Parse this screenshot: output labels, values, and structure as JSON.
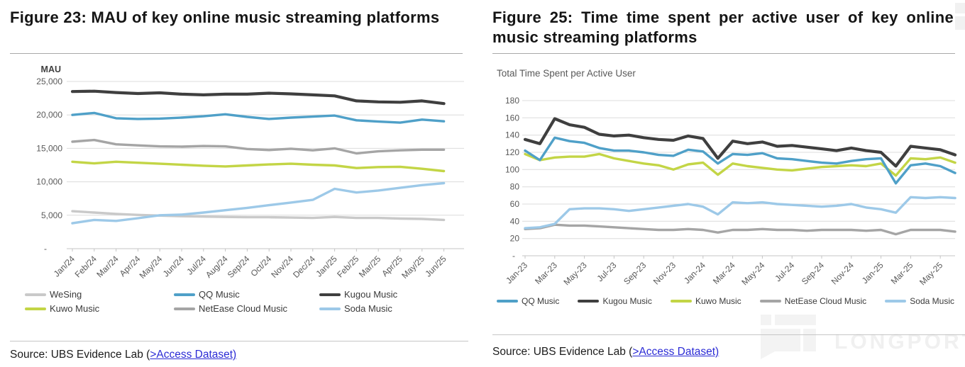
{
  "figure_left": {
    "title": "Figure 23: MAU of key online music streaming platforms",
    "source_prefix": "Source: UBS Evidence Lab (",
    "source_link": ">Access Dataset)"
  },
  "figure_right": {
    "title": "Figure 25: Time time spent per active user of key online music streaming platforms",
    "source_prefix": "Source: UBS Evidence Lab (",
    "source_link": ">Access Dataset)"
  },
  "watermark": {
    "text": "LONGPORT"
  },
  "colors": {
    "wesing": "#c9c9c9",
    "qq_music": "#4fa0c8",
    "kugou_music": "#3f3f3f",
    "kuwo_music": "#c3d546",
    "netease_cloud_music": "#a5a5a5",
    "soda_music": "#9dc9e8",
    "link_blue": "#2b2bd5"
  },
  "chart_data": [
    {
      "type": "line",
      "title": "MAU of key online music streaming platforms",
      "ylabel": "MAU",
      "xlabel": "",
      "ylim": [
        0,
        25000
      ],
      "grid": true,
      "legend_position": "bottom",
      "yticks": [
        25000,
        20000,
        15000,
        10000,
        5000,
        0
      ],
      "ytick_labels": [
        "25,000",
        "20,000",
        "15,000",
        "10,000",
        "5,000",
        "-"
      ],
      "categories": [
        "Jan/24",
        "Feb/24",
        "Mar/24",
        "Apr/24",
        "May/24",
        "Jun/24",
        "Jul/24",
        "Aug/24",
        "Sep/24",
        "Oct/24",
        "Nov/24",
        "Dec/24",
        "Jan/25",
        "Feb/25",
        "Mar/25",
        "Apr/25",
        "May/25",
        "Jun/25"
      ],
      "legend_order": [
        "WeSing",
        "QQ Music",
        "Kugou Music",
        "Kuwo Music",
        "NetEase Cloud Music",
        "Soda Music"
      ],
      "series": [
        {
          "name": "WeSing",
          "color": "#c9c9c9",
          "values": [
            5600,
            5400,
            5200,
            5050,
            4950,
            4850,
            4800,
            4750,
            4700,
            4700,
            4650,
            4600,
            4750,
            4600,
            4600,
            4500,
            4450,
            4300
          ]
        },
        {
          "name": "Soda Music",
          "color": "#9dc9e8",
          "values": [
            3800,
            4300,
            4150,
            4550,
            5000,
            5100,
            5400,
            5750,
            6100,
            6500,
            6900,
            7300,
            8950,
            8400,
            8700,
            9100,
            9500,
            9800
          ]
        },
        {
          "name": "Kuwo Music",
          "color": "#c3d546",
          "values": [
            13000,
            12750,
            13000,
            12850,
            12700,
            12550,
            12400,
            12300,
            12450,
            12600,
            12700,
            12550,
            12450,
            12050,
            12200,
            12250,
            11950,
            11600
          ]
        },
        {
          "name": "NetEase Cloud Music",
          "color": "#a5a5a5",
          "values": [
            16000,
            16250,
            15600,
            15450,
            15300,
            15250,
            15350,
            15300,
            14900,
            14750,
            14950,
            14700,
            15000,
            14250,
            14550,
            14700,
            14800,
            14800
          ]
        },
        {
          "name": "QQ Music",
          "color": "#4fa0c8",
          "values": [
            20000,
            20300,
            19500,
            19400,
            19450,
            19600,
            19800,
            20100,
            19700,
            19400,
            19600,
            19750,
            19900,
            19200,
            19000,
            18850,
            19300,
            19050
          ]
        },
        {
          "name": "Kugou Music",
          "color": "#3f3f3f",
          "values": [
            23500,
            23550,
            23350,
            23200,
            23300,
            23100,
            23000,
            23100,
            23100,
            23250,
            23150,
            23000,
            22850,
            22100,
            21950,
            21900,
            22100,
            21700
          ]
        }
      ]
    },
    {
      "type": "line",
      "title": "Total Time Spent per Active User",
      "ylabel": "",
      "xlabel": "",
      "ylim": [
        0,
        180
      ],
      "grid": true,
      "legend_position": "bottom",
      "yticks": [
        180,
        160,
        140,
        120,
        100,
        80,
        60,
        40,
        20,
        0
      ],
      "ytick_labels": [
        "180",
        "160",
        "140",
        "120",
        "100",
        "80",
        "60",
        "40",
        "20",
        "-"
      ],
      "categories": [
        "Jan-23",
        "Feb-23",
        "Mar-23",
        "Apr-23",
        "May-23",
        "Jun-23",
        "Jul-23",
        "Aug-23",
        "Sep-23",
        "Oct-23",
        "Nov-23",
        "Dec-23",
        "Jan-24",
        "Feb-24",
        "Mar-24",
        "Apr-24",
        "May-24",
        "Jun-24",
        "Jul-24",
        "Aug-24",
        "Sep-24",
        "Oct-24",
        "Nov-24",
        "Dec-24",
        "Jan-25",
        "Feb-25",
        "Mar-25",
        "Apr-25",
        "May-25",
        "Jun-25"
      ],
      "legend_order": [
        "QQ Music",
        "Kugou Music",
        "Kuwo Music",
        "NetEase Cloud Music",
        "Soda Music"
      ],
      "series": [
        {
          "name": "NetEase Cloud Music",
          "color": "#a5a5a5",
          "values": [
            31,
            32,
            36,
            35,
            35,
            34,
            33,
            32,
            31,
            30,
            30,
            31,
            30,
            27,
            30,
            30,
            31,
            30,
            30,
            29,
            30,
            30,
            30,
            29,
            30,
            25,
            30,
            30,
            30,
            28
          ]
        },
        {
          "name": "Soda Music",
          "color": "#9dc9e8",
          "values": [
            32,
            33,
            37,
            54,
            55,
            55,
            54,
            52,
            54,
            56,
            58,
            60,
            57,
            48,
            62,
            61,
            62,
            60,
            59,
            58,
            57,
            58,
            60,
            56,
            54,
            50,
            68,
            67,
            68,
            67
          ]
        },
        {
          "name": "Kuwo Music",
          "color": "#c3d546",
          "values": [
            118,
            111,
            114,
            115,
            115,
            118,
            113,
            110,
            107,
            105,
            100,
            106,
            108,
            94,
            107,
            104,
            102,
            100,
            99,
            101,
            103,
            104,
            105,
            104,
            107,
            93,
            113,
            112,
            114,
            108
          ]
        },
        {
          "name": "QQ Music",
          "color": "#4fa0c8",
          "values": [
            122,
            111,
            137,
            133,
            131,
            125,
            122,
            122,
            120,
            117,
            116,
            123,
            121,
            107,
            118,
            117,
            119,
            113,
            112,
            110,
            108,
            107,
            110,
            112,
            113,
            84,
            105,
            107,
            104,
            96
          ]
        },
        {
          "name": "Kugou Music",
          "color": "#3f3f3f",
          "values": [
            135,
            130,
            159,
            152,
            149,
            141,
            139,
            140,
            137,
            135,
            134,
            139,
            136,
            113,
            133,
            130,
            132,
            127,
            128,
            126,
            124,
            122,
            125,
            122,
            120,
            104,
            127,
            125,
            123,
            117
          ]
        }
      ]
    }
  ]
}
